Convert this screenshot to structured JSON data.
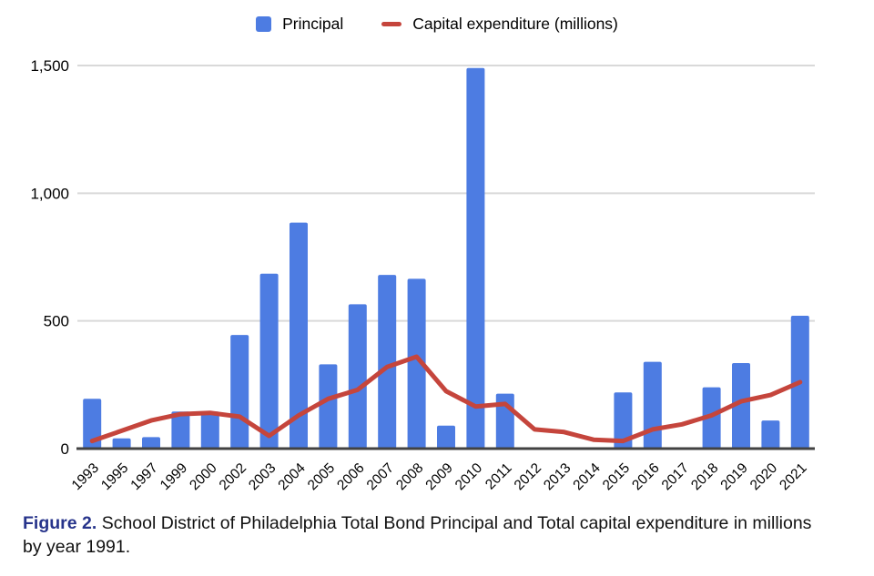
{
  "legend": {
    "items": [
      {
        "label": "Principal"
      },
      {
        "label": "Capital expenditure (millions)"
      }
    ]
  },
  "caption": {
    "prefix": "Figure 2.",
    "line1": "School District of Philadelphia Total Bond Principal and Total capital expenditure in millions",
    "line2": "by year 1991."
  },
  "chart_data": {
    "type": "bar",
    "title": "",
    "xlabel": "",
    "ylabel": "",
    "categories": [
      "1993",
      "1995",
      "1997",
      "1999",
      "2000",
      "2002",
      "2003",
      "2004",
      "2005",
      "2006",
      "2007",
      "2008",
      "2009",
      "2010",
      "2011",
      "2012",
      "2013",
      "2014",
      "2015",
      "2016",
      "2017",
      "2018",
      "2019",
      "2020",
      "2021"
    ],
    "series": [
      {
        "name": "Principal",
        "type": "bar",
        "color": "#4d7ce2",
        "values": [
          195,
          40,
          45,
          145,
          145,
          445,
          685,
          885,
          330,
          565,
          680,
          665,
          90,
          1490,
          215,
          0,
          0,
          0,
          220,
          340,
          0,
          240,
          335,
          110,
          520
        ]
      },
      {
        "name": "Capital expenditure (millions)",
        "type": "line",
        "color": "#c5453c",
        "values": [
          30,
          70,
          110,
          135,
          140,
          125,
          50,
          130,
          195,
          230,
          320,
          360,
          225,
          165,
          175,
          75,
          65,
          35,
          30,
          75,
          95,
          130,
          185,
          210,
          260
        ]
      }
    ],
    "ylim": [
      0,
      1500
    ],
    "yticks": [
      0,
      500,
      1000,
      1500
    ],
    "ytick_labels": [
      "0",
      "500",
      "1,000",
      "1,500"
    ],
    "grid": "horizontal",
    "legend_position": "top",
    "colors": {
      "gridline": "#d9d9d9",
      "axis_line": "#424242",
      "caption_accent": "#27348b"
    }
  }
}
